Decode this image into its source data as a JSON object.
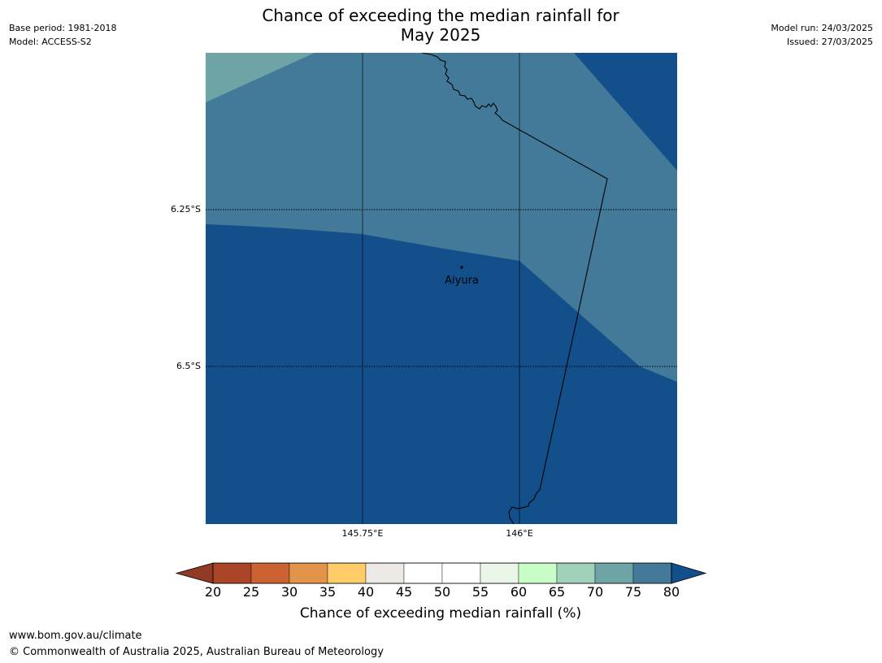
{
  "title": {
    "line1": "Chance of exceeding the median rainfall for",
    "line2": "May 2025"
  },
  "meta_left": {
    "base_period": "Base period: 1981-2018",
    "model": "Model: ACCESS-S2"
  },
  "meta_right": {
    "model_run": "Model run: 24/03/2025",
    "issued": "Issued: 27/03/2025"
  },
  "map": {
    "place_label": "Aiyura",
    "lat_labels": [
      "6.25°S",
      "6.5°S"
    ],
    "lon_labels": [
      "145.75°E",
      "146°E"
    ],
    "colors": {
      "band_75_80": "#437a99",
      "band_gt_80": "#134f8a",
      "band_70_75": "#6ea4a6"
    }
  },
  "colorbar": {
    "title": "Chance of exceeding median rainfall (%)",
    "ticks": [
      "20",
      "25",
      "30",
      "35",
      "40",
      "45",
      "50",
      "55",
      "60",
      "65",
      "70",
      "75",
      "80"
    ],
    "colors": [
      "#ab4527",
      "#cb6232",
      "#e2954a",
      "#fecc68",
      "#ede9e4",
      "#ffffff",
      "#ffffff",
      "#e9f6e8",
      "#c8fdc8",
      "#a0d2b9",
      "#6ea4a6",
      "#437a99"
    ],
    "under_color": "#913a25",
    "over_color": "#134f8a"
  },
  "footer": {
    "url": "www.bom.gov.au/climate",
    "copyright": "© Commonwealth of Australia 2025, Australian Bureau of Meteorology"
  }
}
